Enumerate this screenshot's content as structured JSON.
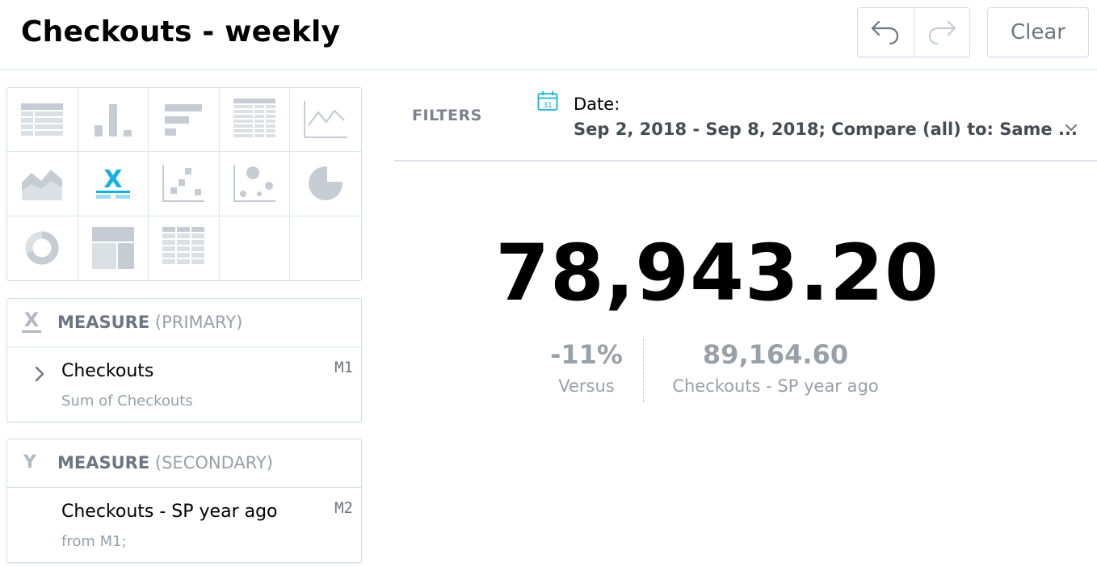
{
  "header": {
    "title": "Checkouts - weekly",
    "clear_label": "Clear"
  },
  "chart_types": [
    "table-icon",
    "column-chart-icon",
    "bar-chart-icon",
    "pivot-table-icon",
    "line-chart-icon",
    "area-chart-icon",
    "headline-icon",
    "scatter-plot-icon",
    "bubble-chart-icon",
    "pie-chart-icon",
    "donut-chart-icon",
    "treemap-icon",
    "heatmap-icon"
  ],
  "selected_chart_type": "headline-icon",
  "buckets": {
    "primary": {
      "letter": "X",
      "title": "MEASURE",
      "qualifier": "(PRIMARY)",
      "item_name": "Checkouts",
      "item_sub": "Sum of Checkouts",
      "item_id": "M1"
    },
    "secondary": {
      "letter": "Y",
      "title": "MEASURE",
      "qualifier": "(SECONDARY)",
      "item_name": "Checkouts - SP year ago",
      "item_sub": "from M1;",
      "item_id": "M2"
    }
  },
  "filters": {
    "label": "FILTERS",
    "date_label": "Date:",
    "date_value": "Sep 2, 2018 - Sep 8, 2018; Compare (all) to: Same ..."
  },
  "headline": {
    "value": "78,943.20",
    "change_value": "-11%",
    "change_label": "Versus",
    "secondary_value": "89,164.60",
    "secondary_label": "Checkouts - SP year ago"
  },
  "colors": {
    "accent": "#14b2e2",
    "icon_gray": "#c6ccd3",
    "text_muted": "#98a0a8"
  }
}
